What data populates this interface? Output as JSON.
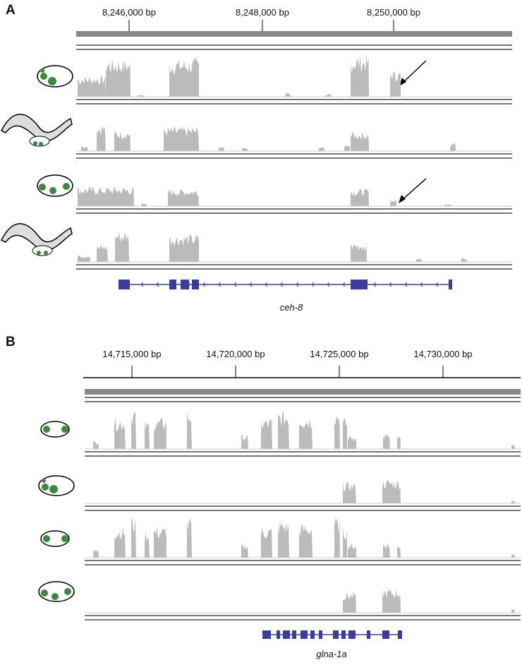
{
  "panels": [
    {
      "label": "A",
      "ticks": [
        "8,246,000 bp",
        "8,248,000 bp",
        "8,250,000 bp"
      ],
      "gene": "ceh-8"
    },
    {
      "label": "B",
      "ticks": [
        "14,715,000 bp",
        "14,720,000 bp",
        "14,725,000 bp",
        "14,730,000 bp"
      ],
      "gene": "glna-1a"
    }
  ]
}
